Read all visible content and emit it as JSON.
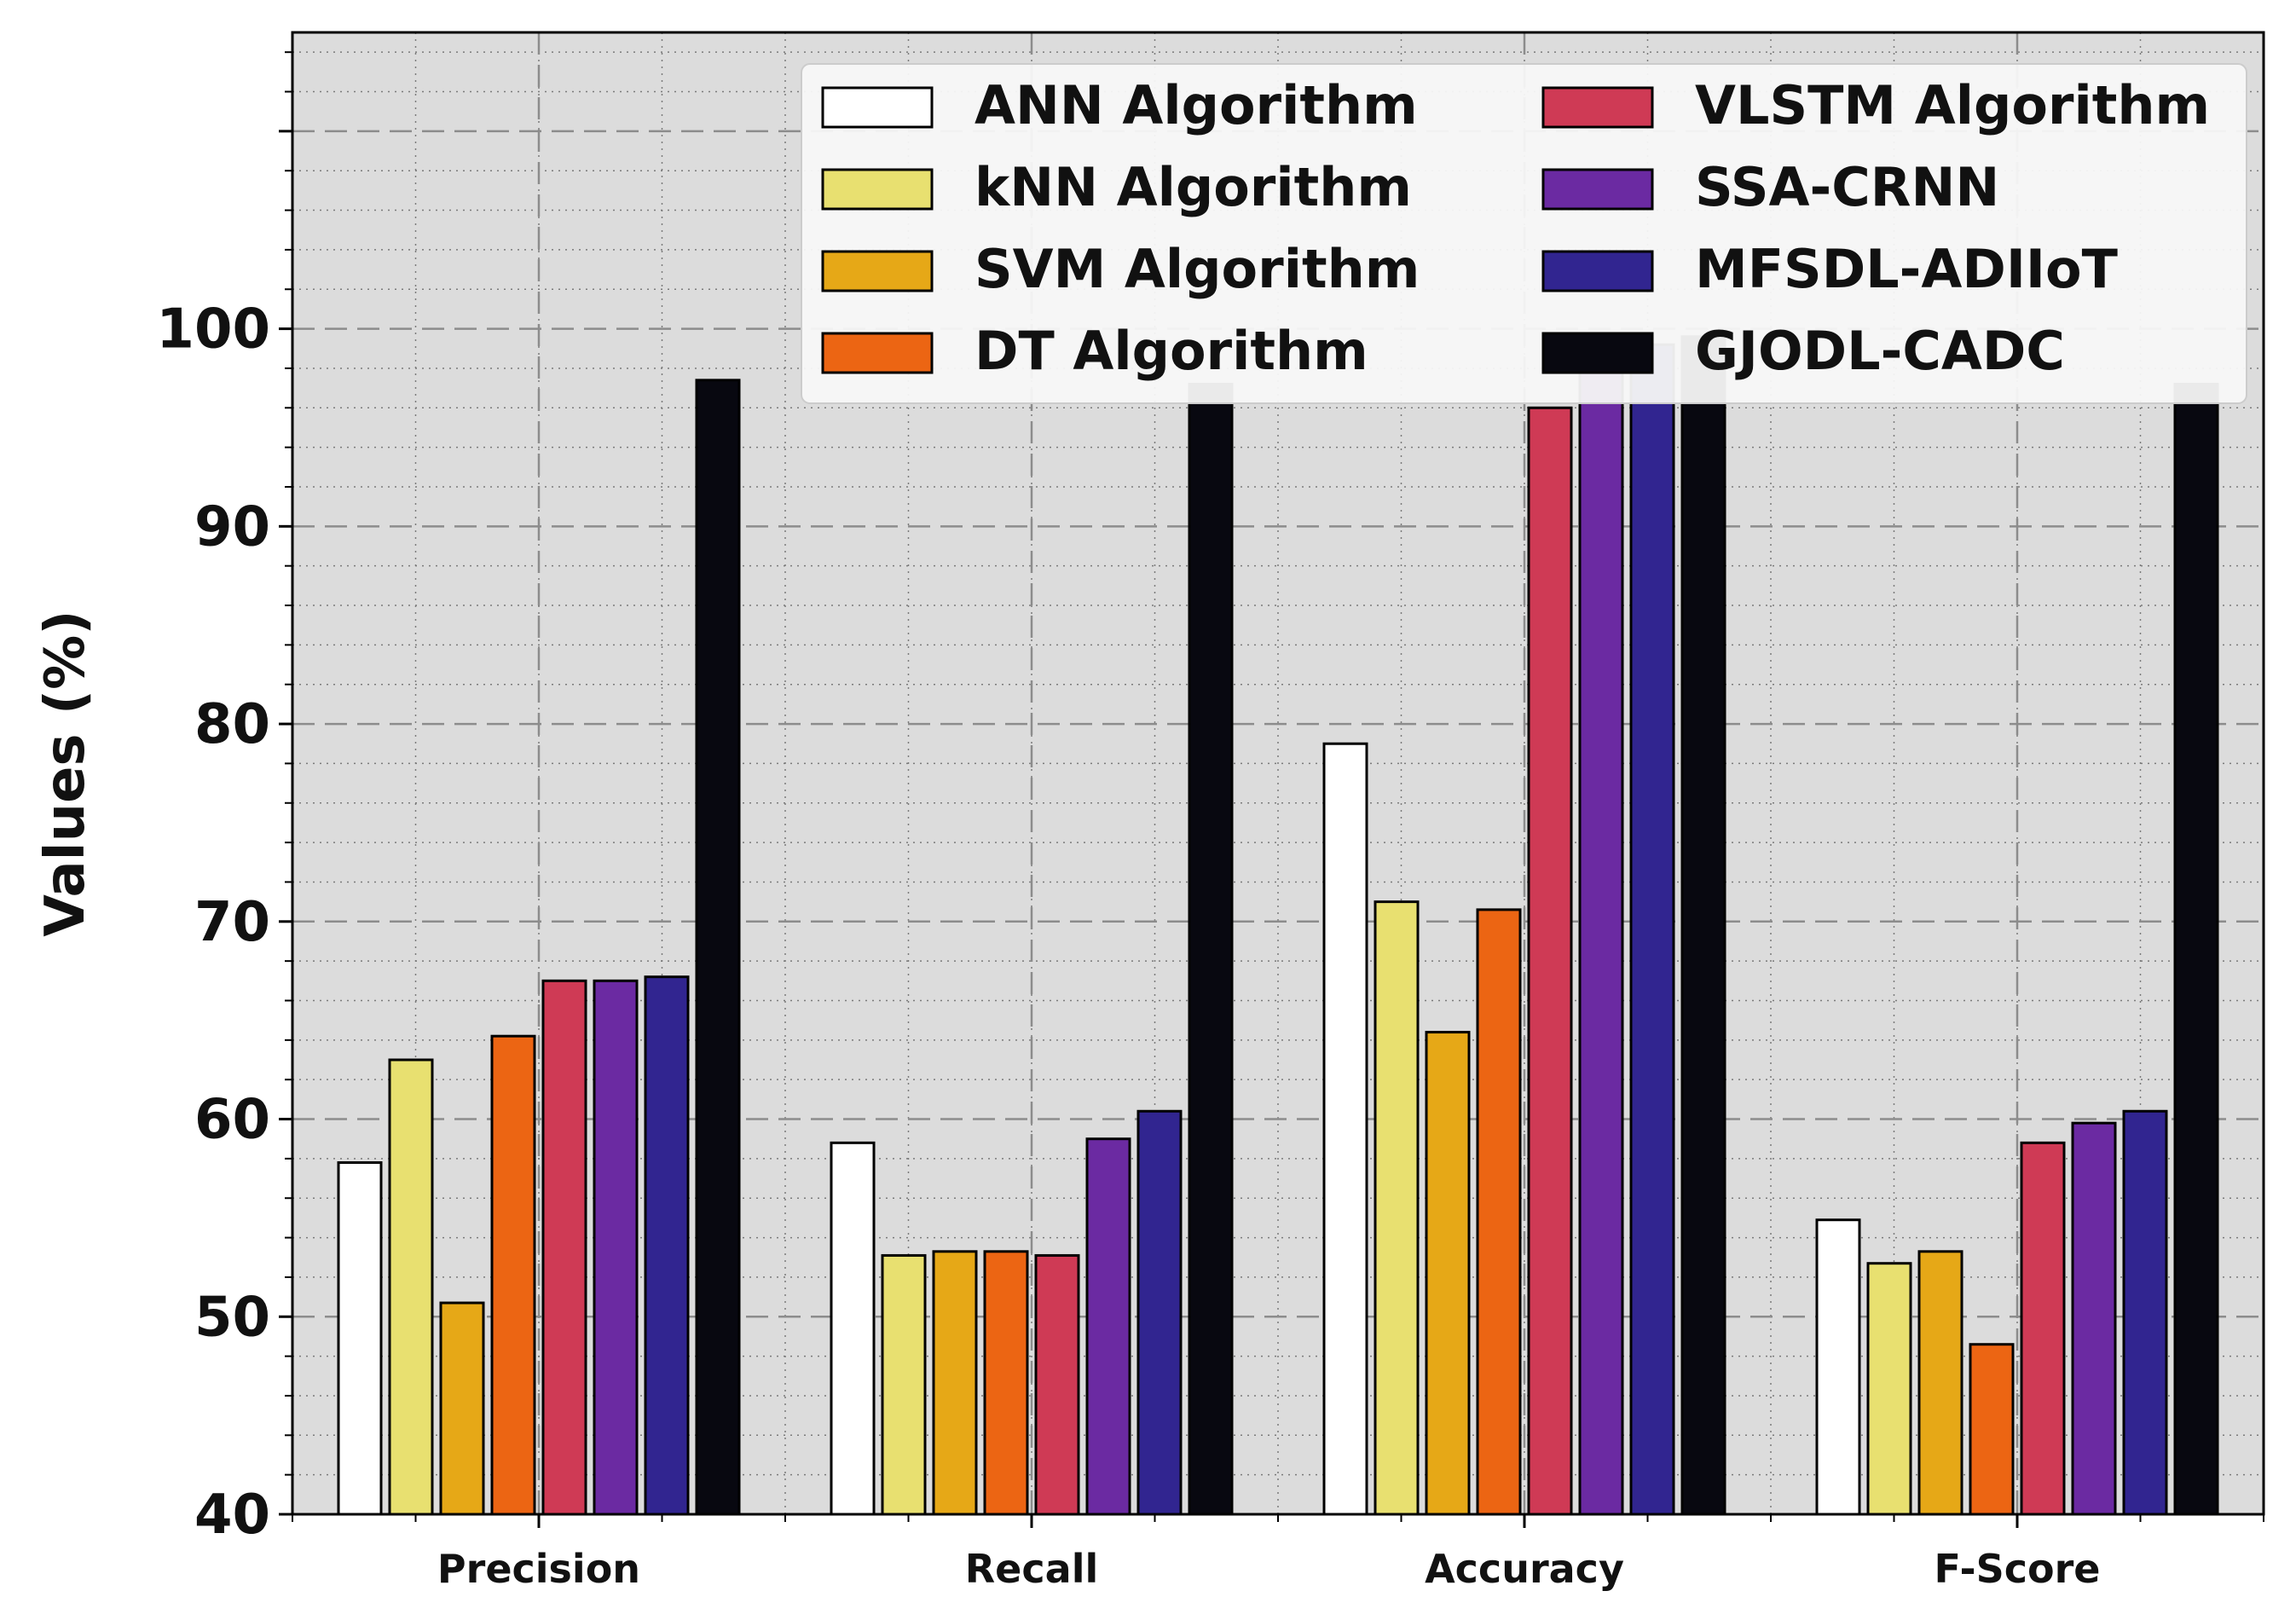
{
  "chart_data": {
    "type": "bar",
    "title": "",
    "xlabel": "",
    "ylabel": "Values (%)",
    "ylim": [
      40,
      115
    ],
    "yticks": [
      40,
      50,
      60,
      70,
      80,
      90,
      100
    ],
    "grid": true,
    "legend_position": "top-right",
    "categories": [
      "Precision",
      "Recall",
      "Accuracy",
      "F-Score"
    ],
    "series": [
      {
        "name": "ANN Algorithm",
        "color": "#ffffff",
        "values": [
          57.8,
          58.8,
          79.0,
          54.9
        ]
      },
      {
        "name": "kNN Algorithm",
        "color": "#e8e070",
        "values": [
          63.0,
          53.1,
          71.0,
          52.7
        ]
      },
      {
        "name": "SVM Algorithm",
        "color": "#e6a817",
        "values": [
          50.7,
          53.3,
          64.4,
          53.3
        ]
      },
      {
        "name": "DT Algorithm",
        "color": "#ec6513",
        "values": [
          64.2,
          53.3,
          70.6,
          48.6
        ]
      },
      {
        "name": "VLSTM Algorithm",
        "color": "#cf3a55",
        "values": [
          67.0,
          53.1,
          96.0,
          58.8
        ]
      },
      {
        "name": "SSA-CRNN",
        "color": "#6b2aa2",
        "values": [
          67.0,
          59.0,
          98.8,
          59.8
        ]
      },
      {
        "name": "MFSDL-ADIIoT",
        "color": "#312590",
        "values": [
          67.2,
          60.4,
          99.2,
          60.4
        ]
      },
      {
        "name": "GJODL-CADC",
        "color": "#080810",
        "values": [
          97.4,
          97.2,
          99.6,
          97.2
        ]
      }
    ]
  }
}
